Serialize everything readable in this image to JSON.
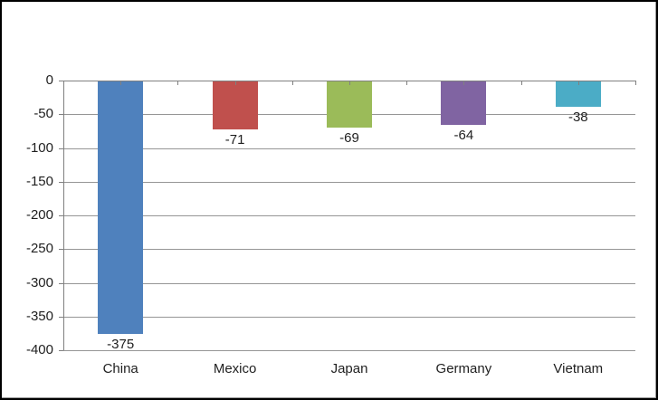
{
  "chart_data": {
    "type": "bar",
    "title": "",
    "xlabel": "",
    "ylabel": "",
    "categories": [
      "China",
      "Mexico",
      "Japan",
      "Germany",
      "Vietnam"
    ],
    "values": [
      -375,
      -71,
      -69,
      -64,
      -38
    ],
    "data_labels": [
      "-375",
      "-71",
      "-69",
      "-64",
      "-38"
    ],
    "bar_colors": [
      "#4F81BD",
      "#C0504D",
      "#9BBB59",
      "#8064A2",
      "#4BACC6"
    ],
    "ylim": [
      -400,
      0
    ],
    "y_ticks": [
      0,
      -50,
      -100,
      -150,
      -200,
      -250,
      -300,
      -350,
      -400
    ],
    "y_tick_labels": [
      "0",
      "-50",
      "-100",
      "-150",
      "-200",
      "-250",
      "-300",
      "-350",
      "-400"
    ],
    "grid": true,
    "legend": "none",
    "colors": {
      "plot_background": "#FFFFFF",
      "gridline": "#969696",
      "axis": "#808080",
      "text": "#1F1F1F",
      "frame_border": "#000000"
    }
  }
}
